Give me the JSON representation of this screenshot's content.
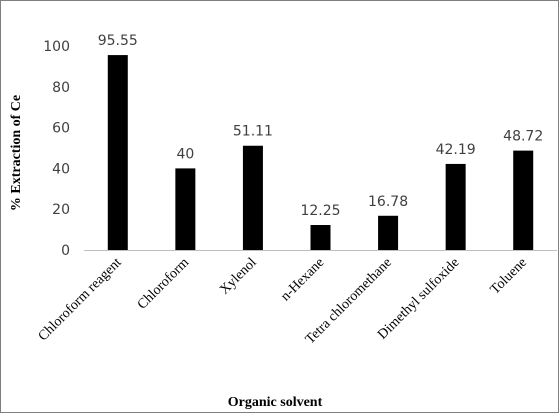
{
  "chart_data": {
    "type": "bar",
    "title": "",
    "xlabel": "Organic solvent",
    "ylabel": "% Extraction of Ce",
    "ylim": [
      0,
      100
    ],
    "yticks": [
      0,
      20,
      40,
      60,
      80,
      100
    ],
    "categories": [
      "Chloroform reagent",
      "Chloroform",
      "Xylenol",
      "n-Hexane",
      "Tetra chloromethane",
      "Dimethyl sulfoxide",
      "Toluene"
    ],
    "values": [
      95.55,
      40,
      51.11,
      12.25,
      16.78,
      42.19,
      48.72
    ],
    "data_labels": [
      "95.55",
      "40",
      "51.11",
      "12.25",
      "16.78",
      "42.19",
      "48.72"
    ],
    "bar_color": "#000000",
    "grid": false,
    "legend": "none"
  }
}
